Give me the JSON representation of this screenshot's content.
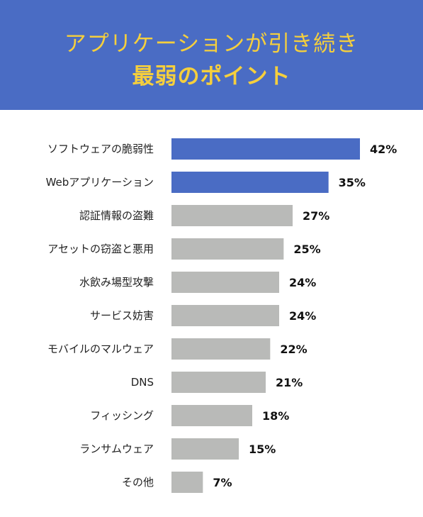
{
  "title": {
    "line1": "アプリケーションが引き続き",
    "line2": "最弱のポイント"
  },
  "colors": {
    "header_bg": "#4a6cc4",
    "title_text": "#f5cf3d",
    "highlight_bar": "#4a6cc4",
    "normal_bar": "#b9bab8"
  },
  "chart_data": {
    "type": "bar",
    "orientation": "horizontal",
    "categories": [
      "ソフトウェアの脆弱性",
      "Webアプリケーション",
      "認証情報の盗難",
      "アセットの窃盗と悪用",
      "水飲み場型攻撃",
      "サービス妨害",
      "モバイルのマルウェア",
      "DNS",
      "フィッシング",
      "ランサムウェア",
      "その他"
    ],
    "values": [
      42,
      35,
      27,
      25,
      24,
      24,
      22,
      21,
      18,
      15,
      7
    ],
    "value_labels": [
      "42%",
      "35%",
      "27%",
      "25%",
      "24%",
      "24%",
      "22%",
      "21%",
      "18%",
      "15%",
      "7%"
    ],
    "highlighted": [
      true,
      true,
      false,
      false,
      false,
      false,
      false,
      false,
      false,
      false,
      false
    ],
    "unit": "%",
    "xlim": [
      0,
      42
    ],
    "grid": false,
    "legend": "none"
  }
}
